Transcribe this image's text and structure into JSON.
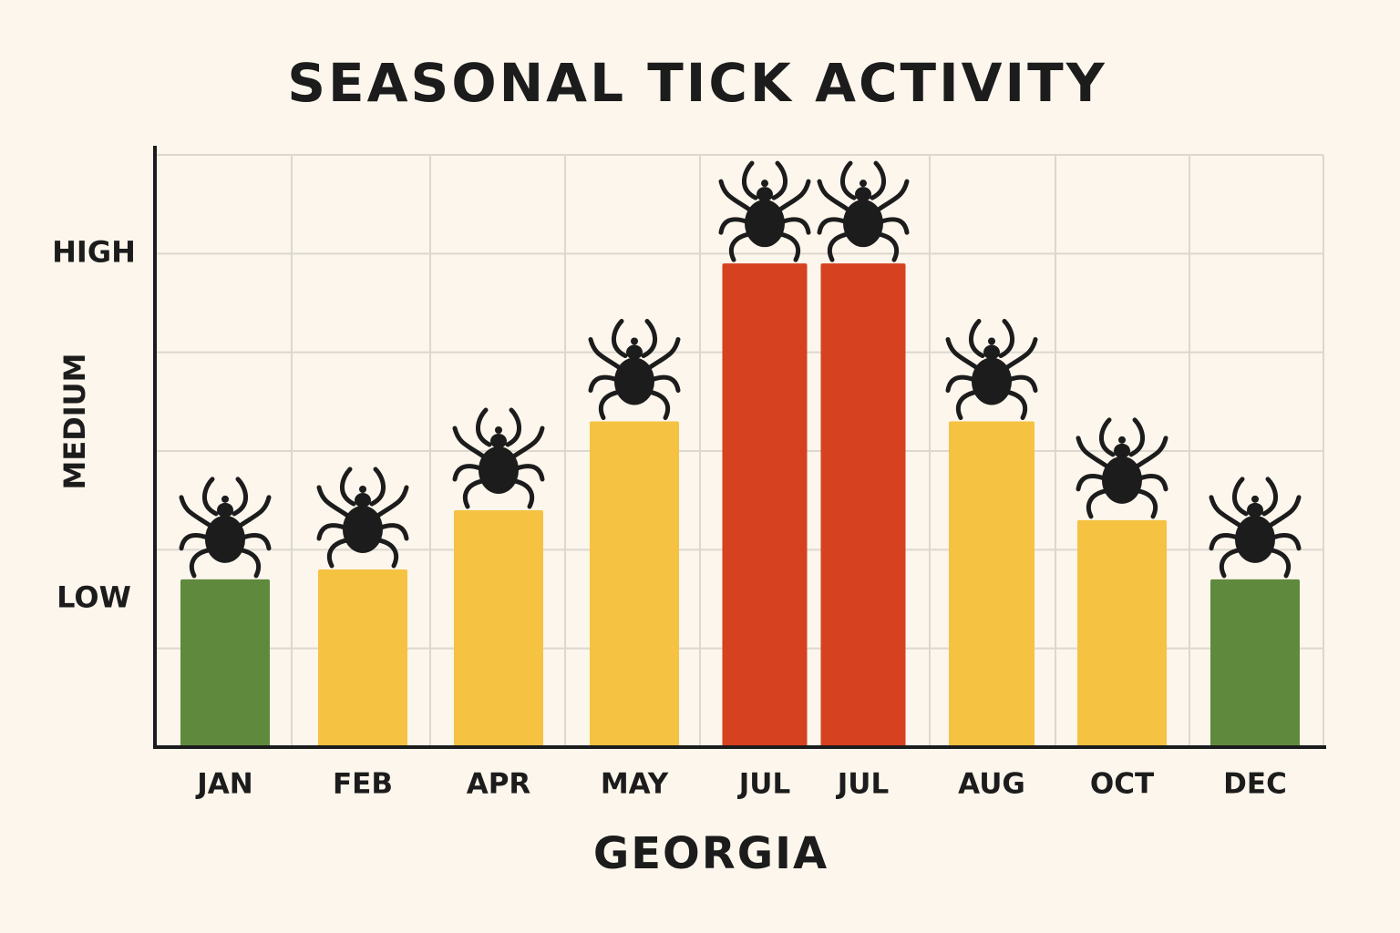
{
  "chart_data": {
    "type": "bar",
    "title": "SEASONAL TICK ACTIVITY",
    "x_label": "GEORGIA",
    "categories": [
      "JAN",
      "FEB",
      "APR",
      "MAY",
      "JUL",
      "JUL",
      "AUG",
      "OCT",
      "DEC"
    ],
    "values": [
      1.7,
      1.8,
      2.4,
      3.3,
      4.9,
      4.9,
      3.3,
      2.3,
      1.7
    ],
    "colors": [
      "#5f8a3d",
      "#f5c242",
      "#f5c242",
      "#f5c242",
      "#d6411f",
      "#d6411f",
      "#f5c242",
      "#f5c242",
      "#5f8a3d"
    ],
    "ylim": [
      0,
      6
    ],
    "yticks": [
      {
        "value": 1.5,
        "label": "LOW"
      },
      {
        "value": 3.3,
        "label": "MEDIUM"
      },
      {
        "value": 5,
        "label": "HIGH"
      }
    ],
    "ygrid": [
      1,
      2,
      3,
      4,
      5,
      6
    ],
    "grid": true
  }
}
